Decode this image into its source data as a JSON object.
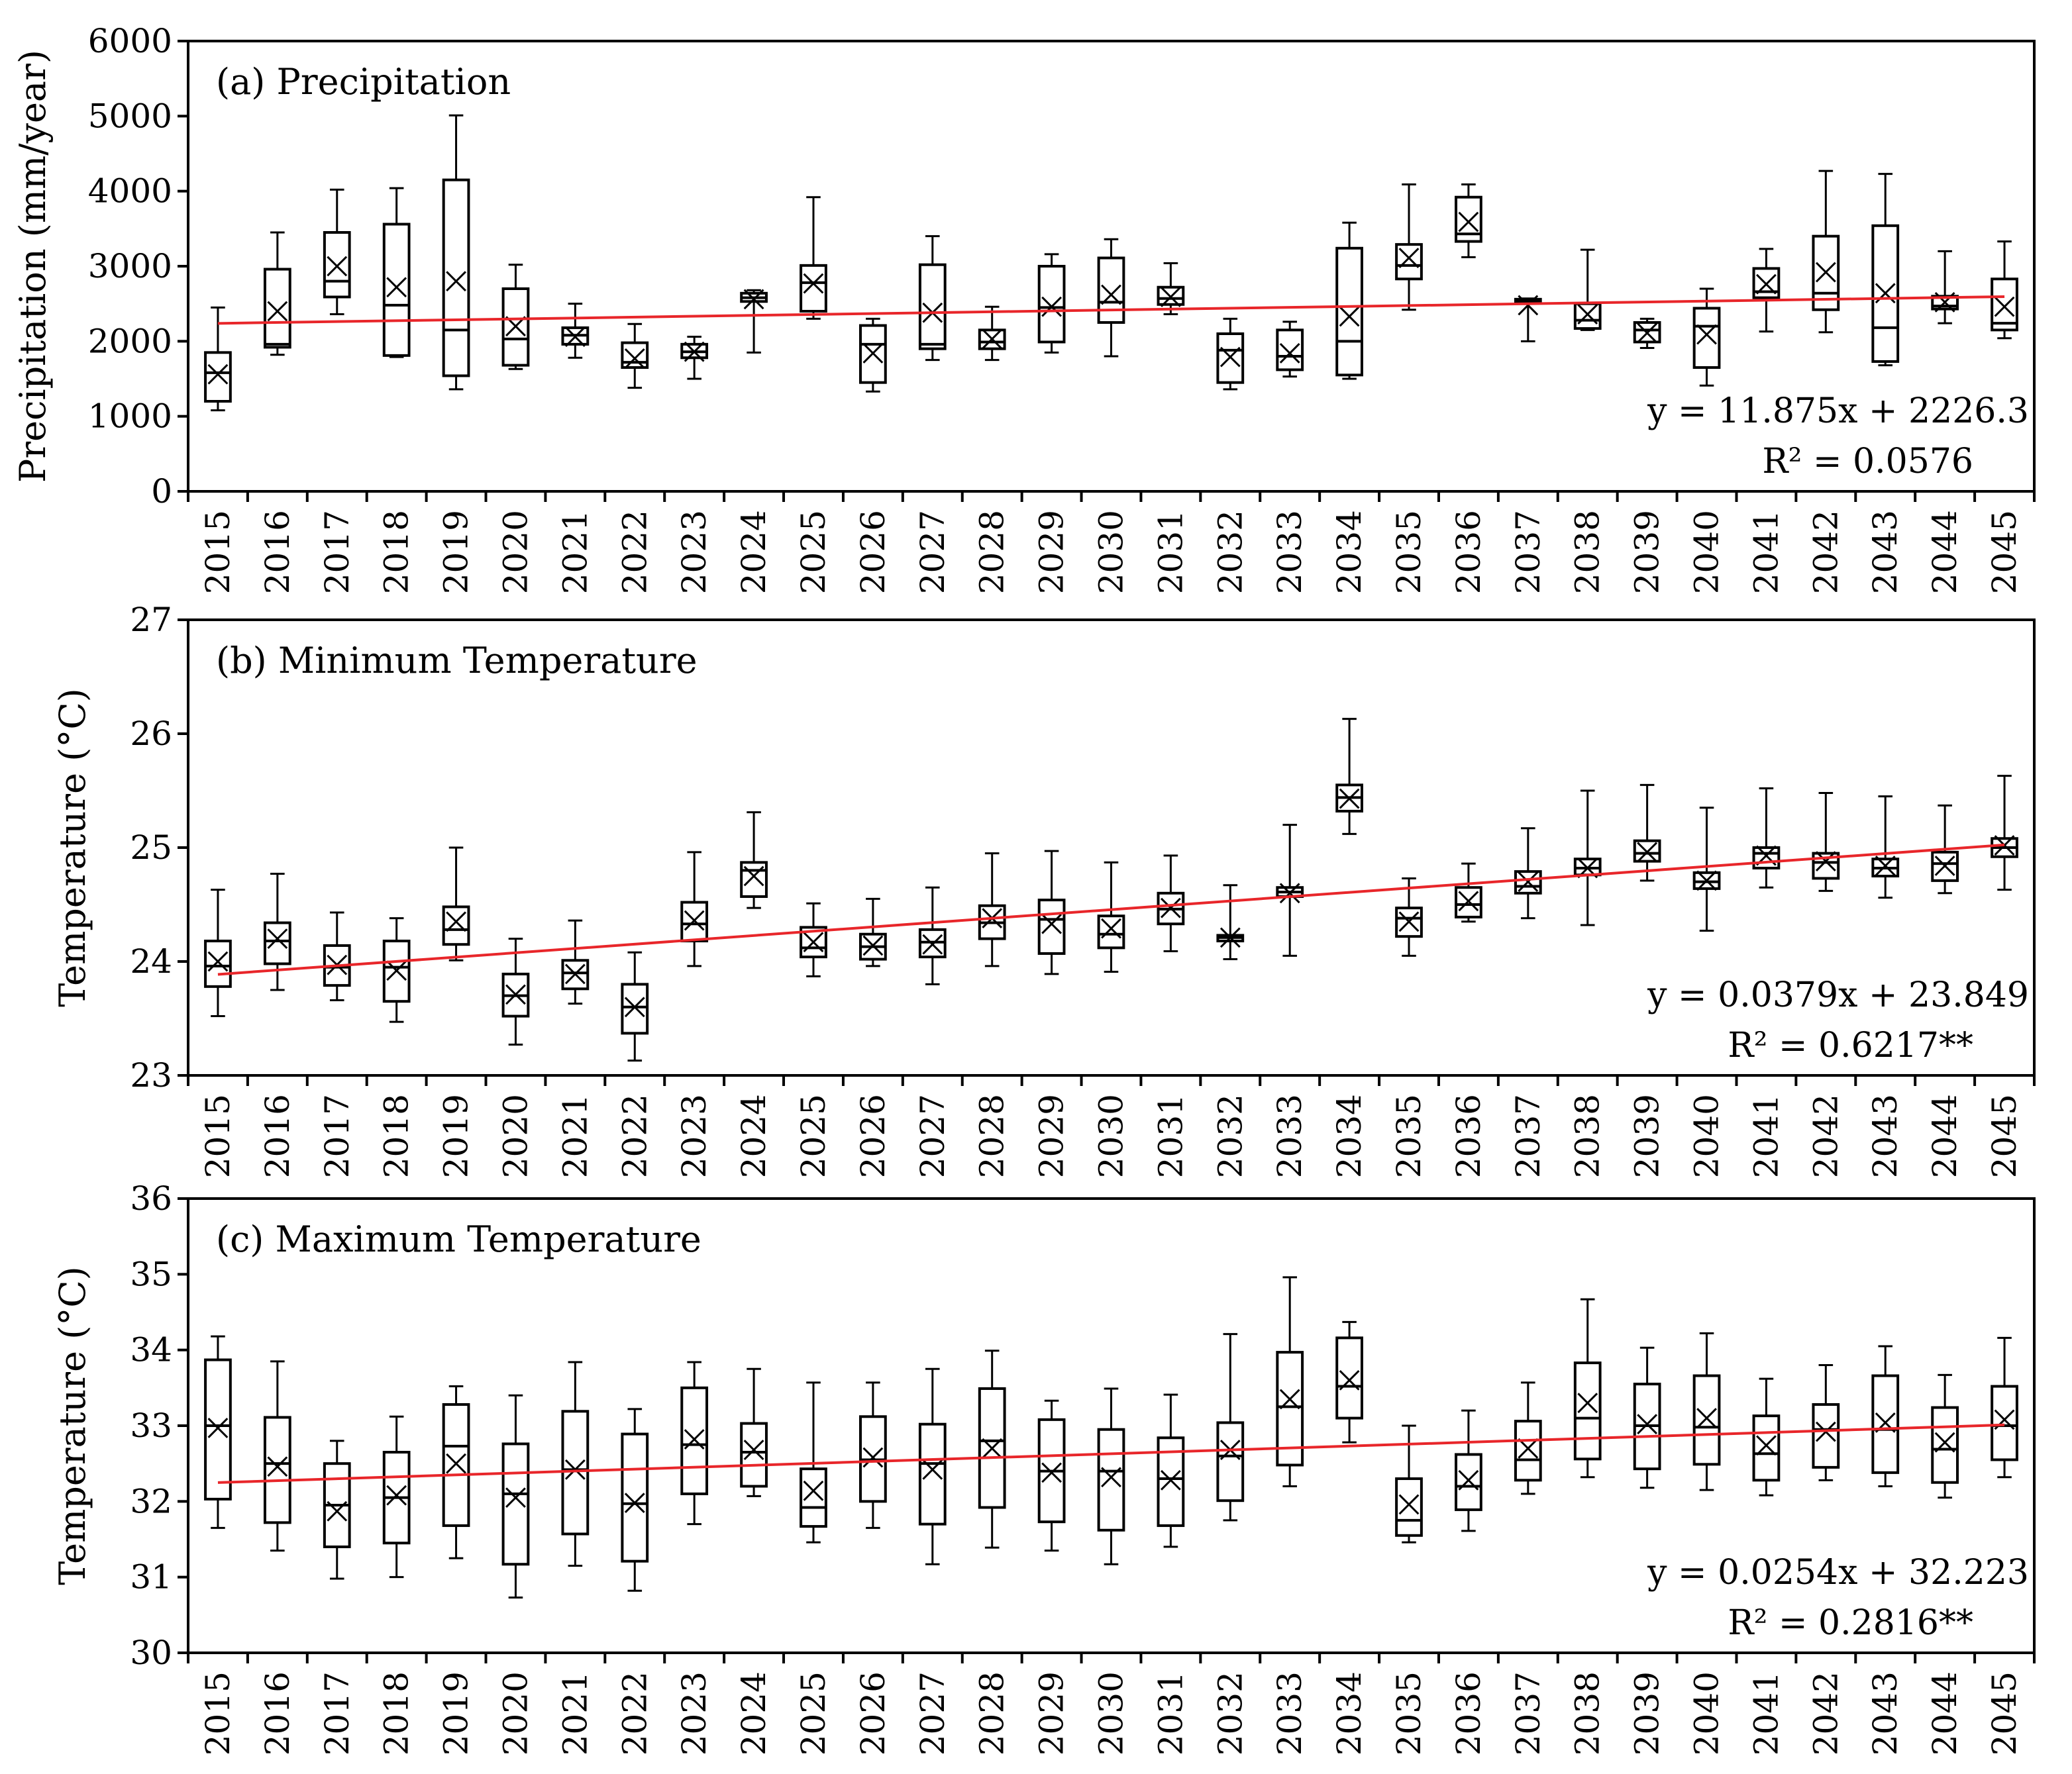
{
  "chart_data": [
    {
      "type": "box",
      "panel": "top",
      "title": "(a) Precipitation",
      "ylabel": "Precipitation (mm/year)",
      "ylim": [
        0,
        6000
      ],
      "yticks": [
        0,
        1000,
        2000,
        3000,
        4000,
        5000,
        6000
      ],
      "categories": [
        "2015",
        "2016",
        "2017",
        "2018",
        "2019",
        "2020",
        "2021",
        "2022",
        "2023",
        "2024",
        "2025",
        "2026",
        "2027",
        "2028",
        "2029",
        "2030",
        "2031",
        "2032",
        "2033",
        "2034",
        "2035",
        "2036",
        "2037",
        "2038",
        "2039",
        "2040",
        "2041",
        "2042",
        "2043",
        "2044",
        "2045"
      ],
      "boxes": [
        {
          "min": 1080,
          "q1": 1200,
          "median": 1580,
          "q3": 1850,
          "max": 2450,
          "mean": 1560
        },
        {
          "min": 1820,
          "q1": 1920,
          "median": 1960,
          "q3": 2960,
          "max": 3450,
          "mean": 2400
        },
        {
          "min": 2360,
          "q1": 2590,
          "median": 2800,
          "q3": 3450,
          "max": 4020,
          "mean": 3000
        },
        {
          "min": 1790,
          "q1": 1810,
          "median": 2480,
          "q3": 3560,
          "max": 4040,
          "mean": 2720
        },
        {
          "min": 1360,
          "q1": 1540,
          "median": 2150,
          "q3": 4150,
          "max": 5010,
          "mean": 2800
        },
        {
          "min": 1630,
          "q1": 1680,
          "median": 2030,
          "q3": 2700,
          "max": 3020,
          "mean": 2200
        },
        {
          "min": 1780,
          "q1": 1960,
          "median": 2080,
          "q3": 2180,
          "max": 2500,
          "mean": 2060
        },
        {
          "min": 1380,
          "q1": 1650,
          "median": 1720,
          "q3": 1980,
          "max": 2230,
          "mean": 1770
        },
        {
          "min": 1500,
          "q1": 1780,
          "median": 1860,
          "q3": 1960,
          "max": 2060,
          "mean": 1860
        },
        {
          "min": 1850,
          "q1": 2530,
          "median": 2580,
          "q3": 2640,
          "max": 2680,
          "mean": 2560
        },
        {
          "min": 2300,
          "q1": 2400,
          "median": 2780,
          "q3": 3010,
          "max": 3920,
          "mean": 2770
        },
        {
          "min": 1330,
          "q1": 1450,
          "median": 1960,
          "q3": 2210,
          "max": 2300,
          "mean": 1840
        },
        {
          "min": 1750,
          "q1": 1900,
          "median": 1960,
          "q3": 3020,
          "max": 3400,
          "mean": 2380
        },
        {
          "min": 1750,
          "q1": 1900,
          "median": 1990,
          "q3": 2150,
          "max": 2460,
          "mean": 2030
        },
        {
          "min": 1850,
          "q1": 1990,
          "median": 2450,
          "q3": 3000,
          "max": 3160,
          "mean": 2460
        },
        {
          "min": 1800,
          "q1": 2250,
          "median": 2520,
          "q3": 3110,
          "max": 3360,
          "mean": 2620
        },
        {
          "min": 2360,
          "q1": 2490,
          "median": 2570,
          "q3": 2720,
          "max": 3040,
          "mean": 2590
        },
        {
          "min": 1360,
          "q1": 1450,
          "median": 1880,
          "q3": 2100,
          "max": 2300,
          "mean": 1790
        },
        {
          "min": 1530,
          "q1": 1620,
          "median": 1800,
          "q3": 2150,
          "max": 2260,
          "mean": 1840
        },
        {
          "min": 1500,
          "q1": 1550,
          "median": 2000,
          "q3": 3240,
          "max": 3580,
          "mean": 2330
        },
        {
          "min": 2420,
          "q1": 2830,
          "median": 3010,
          "q3": 3290,
          "max": 4090,
          "mean": 3110
        },
        {
          "min": 3120,
          "q1": 3330,
          "median": 3430,
          "q3": 3920,
          "max": 4090,
          "mean": 3590
        },
        {
          "min": 2000,
          "q1": 2510,
          "median": 2540,
          "q3": 2560,
          "max": 2570,
          "mean": 2480
        },
        {
          "min": 2150,
          "q1": 2170,
          "median": 2280,
          "q3": 2500,
          "max": 3220,
          "mean": 2360
        },
        {
          "min": 1910,
          "q1": 1990,
          "median": 2150,
          "q3": 2250,
          "max": 2300,
          "mean": 2110
        },
        {
          "min": 1410,
          "q1": 1650,
          "median": 2200,
          "q3": 2440,
          "max": 2700,
          "mean": 2090
        },
        {
          "min": 2130,
          "q1": 2580,
          "median": 2660,
          "q3": 2970,
          "max": 3230,
          "mean": 2760
        },
        {
          "min": 2120,
          "q1": 2420,
          "median": 2640,
          "q3": 3400,
          "max": 4270,
          "mean": 2920
        },
        {
          "min": 1680,
          "q1": 1730,
          "median": 2180,
          "q3": 3540,
          "max": 4230,
          "mean": 2640
        },
        {
          "min": 2240,
          "q1": 2430,
          "median": 2470,
          "q3": 2600,
          "max": 3200,
          "mean": 2520
        },
        {
          "min": 2040,
          "q1": 2150,
          "median": 2240,
          "q3": 2830,
          "max": 3330,
          "mean": 2460
        }
      ],
      "trend": {
        "slope": 11.875,
        "intercept": 2226.3
      },
      "equation": "y = 11.875x + 2226.3",
      "r2": "R² = 0.0576"
    },
    {
      "type": "box",
      "panel": "middle",
      "title": "(b) Minimum Temperature",
      "ylabel": "Temperature (°C)",
      "ylim": [
        23,
        27
      ],
      "yticks": [
        23,
        24,
        25,
        26,
        27
      ],
      "categories": [
        "2015",
        "2016",
        "2017",
        "2018",
        "2019",
        "2020",
        "2021",
        "2022",
        "2023",
        "2024",
        "2025",
        "2026",
        "2027",
        "2028",
        "2029",
        "2030",
        "2031",
        "2032",
        "2033",
        "2034",
        "2035",
        "2036",
        "2037",
        "2038",
        "2039",
        "2040",
        "2041",
        "2042",
        "2043",
        "2044",
        "2045"
      ],
      "boxes": [
        {
          "min": 23.52,
          "q1": 23.78,
          "median": 23.96,
          "q3": 24.18,
          "max": 24.63,
          "mean": 24.0
        },
        {
          "min": 23.75,
          "q1": 23.98,
          "median": 24.18,
          "q3": 24.34,
          "max": 24.77,
          "mean": 24.2
        },
        {
          "min": 23.66,
          "q1": 23.79,
          "median": 23.95,
          "q3": 24.14,
          "max": 24.43,
          "mean": 23.97
        },
        {
          "min": 23.47,
          "q1": 23.65,
          "median": 23.95,
          "q3": 24.18,
          "max": 24.38,
          "mean": 23.92
        },
        {
          "min": 24.01,
          "q1": 24.15,
          "median": 24.28,
          "q3": 24.48,
          "max": 25.0,
          "mean": 24.35
        },
        {
          "min": 23.27,
          "q1": 23.52,
          "median": 23.7,
          "q3": 23.89,
          "max": 24.2,
          "mean": 23.71
        },
        {
          "min": 23.63,
          "q1": 23.76,
          "median": 23.9,
          "q3": 24.01,
          "max": 24.36,
          "mean": 23.89
        },
        {
          "min": 23.13,
          "q1": 23.37,
          "median": 23.6,
          "q3": 23.8,
          "max": 24.08,
          "mean": 23.6
        },
        {
          "min": 23.96,
          "q1": 24.18,
          "median": 24.33,
          "q3": 24.52,
          "max": 24.96,
          "mean": 24.36
        },
        {
          "min": 24.47,
          "q1": 24.57,
          "median": 24.8,
          "q3": 24.87,
          "max": 25.31,
          "mean": 24.75
        },
        {
          "min": 23.87,
          "q1": 24.04,
          "median": 24.12,
          "q3": 24.3,
          "max": 24.51,
          "mean": 24.17
        },
        {
          "min": 23.96,
          "q1": 24.02,
          "median": 24.13,
          "q3": 24.24,
          "max": 24.55,
          "mean": 24.14
        },
        {
          "min": 23.8,
          "q1": 24.04,
          "median": 24.17,
          "q3": 24.28,
          "max": 24.65,
          "mean": 24.15
        },
        {
          "min": 23.96,
          "q1": 24.2,
          "median": 24.34,
          "q3": 24.49,
          "max": 24.95,
          "mean": 24.38
        },
        {
          "min": 23.89,
          "q1": 24.07,
          "median": 24.37,
          "q3": 24.54,
          "max": 24.97,
          "mean": 24.33
        },
        {
          "min": 23.91,
          "q1": 24.12,
          "median": 24.24,
          "q3": 24.4,
          "max": 24.87,
          "mean": 24.29
        },
        {
          "min": 24.09,
          "q1": 24.33,
          "median": 24.46,
          "q3": 24.6,
          "max": 24.93,
          "mean": 24.47
        },
        {
          "min": 24.02,
          "q1": 24.18,
          "median": 24.21,
          "q3": 24.23,
          "max": 24.67,
          "mean": 24.21
        },
        {
          "min": 24.05,
          "q1": 24.57,
          "median": 24.61,
          "q3": 24.65,
          "max": 25.2,
          "mean": 24.6
        },
        {
          "min": 25.12,
          "q1": 25.32,
          "median": 25.44,
          "q3": 25.55,
          "max": 26.13,
          "mean": 25.43
        },
        {
          "min": 24.05,
          "q1": 24.22,
          "median": 24.38,
          "q3": 24.47,
          "max": 24.73,
          "mean": 24.35
        },
        {
          "min": 24.35,
          "q1": 24.39,
          "median": 24.5,
          "q3": 24.65,
          "max": 24.86,
          "mean": 24.53
        },
        {
          "min": 24.38,
          "q1": 24.6,
          "median": 24.66,
          "q3": 24.79,
          "max": 25.17,
          "mean": 24.7
        },
        {
          "min": 24.32,
          "q1": 24.76,
          "median": 24.82,
          "q3": 24.9,
          "max": 25.5,
          "mean": 24.82
        },
        {
          "min": 24.71,
          "q1": 24.88,
          "median": 24.95,
          "q3": 25.06,
          "max": 25.55,
          "mean": 24.96
        },
        {
          "min": 24.27,
          "q1": 24.64,
          "median": 24.7,
          "q3": 24.78,
          "max": 25.35,
          "mean": 24.71
        },
        {
          "min": 24.65,
          "q1": 24.82,
          "median": 24.95,
          "q3": 25.0,
          "max": 25.52,
          "mean": 24.93
        },
        {
          "min": 24.62,
          "q1": 24.73,
          "median": 24.87,
          "q3": 24.95,
          "max": 25.48,
          "mean": 24.88
        },
        {
          "min": 24.56,
          "q1": 24.75,
          "median": 24.82,
          "q3": 24.9,
          "max": 25.45,
          "mean": 24.84
        },
        {
          "min": 24.6,
          "q1": 24.71,
          "median": 24.86,
          "q3": 24.96,
          "max": 25.37,
          "mean": 24.84
        },
        {
          "min": 24.63,
          "q1": 24.92,
          "median": 25.0,
          "q3": 25.08,
          "max": 25.63,
          "mean": 25.02
        }
      ],
      "trend": {
        "slope": 0.0379,
        "intercept": 23.849
      },
      "equation": "y = 0.0379x + 23.849",
      "r2": "R² = 0.6217**"
    },
    {
      "type": "box",
      "panel": "bottom",
      "title": "(c) Maximum Temperature",
      "ylabel": "Temperature (°C)",
      "ylim": [
        30,
        36
      ],
      "yticks": [
        30,
        31,
        32,
        33,
        34,
        35,
        36
      ],
      "categories": [
        "2015",
        "2016",
        "2017",
        "2018",
        "2019",
        "2020",
        "2021",
        "2022",
        "2023",
        "2024",
        "2025",
        "2026",
        "2027",
        "2028",
        "2029",
        "2030",
        "2031",
        "2032",
        "2033",
        "2034",
        "2035",
        "2036",
        "2037",
        "2038",
        "2039",
        "2040",
        "2041",
        "2042",
        "2043",
        "2044",
        "2045"
      ],
      "boxes": [
        {
          "min": 31.65,
          "q1": 32.03,
          "median": 33.0,
          "q3": 33.87,
          "max": 34.18,
          "mean": 32.97
        },
        {
          "min": 31.35,
          "q1": 31.72,
          "median": 32.5,
          "q3": 33.11,
          "max": 33.85,
          "mean": 32.46
        },
        {
          "min": 30.98,
          "q1": 31.4,
          "median": 31.95,
          "q3": 32.5,
          "max": 32.8,
          "mean": 31.87
        },
        {
          "min": 31.0,
          "q1": 31.45,
          "median": 32.05,
          "q3": 32.65,
          "max": 33.12,
          "mean": 32.08
        },
        {
          "min": 31.25,
          "q1": 31.68,
          "median": 32.73,
          "q3": 33.28,
          "max": 33.52,
          "mean": 32.5
        },
        {
          "min": 30.73,
          "q1": 31.17,
          "median": 32.1,
          "q3": 32.76,
          "max": 33.4,
          "mean": 32.05
        },
        {
          "min": 31.15,
          "q1": 31.57,
          "median": 32.42,
          "q3": 33.19,
          "max": 33.84,
          "mean": 32.42
        },
        {
          "min": 30.82,
          "q1": 31.21,
          "median": 31.97,
          "q3": 32.89,
          "max": 33.22,
          "mean": 31.98
        },
        {
          "min": 31.7,
          "q1": 32.1,
          "median": 32.75,
          "q3": 33.5,
          "max": 33.84,
          "mean": 32.82
        },
        {
          "min": 32.07,
          "q1": 32.2,
          "median": 32.65,
          "q3": 33.03,
          "max": 33.75,
          "mean": 32.68
        },
        {
          "min": 31.46,
          "q1": 31.67,
          "median": 31.92,
          "q3": 32.43,
          "max": 33.57,
          "mean": 32.14
        },
        {
          "min": 31.65,
          "q1": 32.0,
          "median": 32.55,
          "q3": 33.12,
          "max": 33.57,
          "mean": 32.58
        },
        {
          "min": 31.17,
          "q1": 31.7,
          "median": 32.5,
          "q3": 33.02,
          "max": 33.75,
          "mean": 32.42
        },
        {
          "min": 31.39,
          "q1": 31.92,
          "median": 32.8,
          "q3": 33.49,
          "max": 33.99,
          "mean": 32.7
        },
        {
          "min": 31.35,
          "q1": 31.73,
          "median": 32.4,
          "q3": 33.08,
          "max": 33.33,
          "mean": 32.38
        },
        {
          "min": 31.17,
          "q1": 31.62,
          "median": 32.4,
          "q3": 32.95,
          "max": 33.49,
          "mean": 32.32
        },
        {
          "min": 31.4,
          "q1": 31.68,
          "median": 32.3,
          "q3": 32.84,
          "max": 33.41,
          "mean": 32.28
        },
        {
          "min": 31.75,
          "q1": 32.01,
          "median": 32.6,
          "q3": 33.04,
          "max": 34.21,
          "mean": 32.68
        },
        {
          "min": 32.2,
          "q1": 32.48,
          "median": 33.25,
          "q3": 33.97,
          "max": 34.96,
          "mean": 33.35
        },
        {
          "min": 32.78,
          "q1": 33.1,
          "median": 33.52,
          "q3": 34.16,
          "max": 34.37,
          "mean": 33.6
        },
        {
          "min": 31.46,
          "q1": 31.55,
          "median": 31.75,
          "q3": 32.3,
          "max": 33.0,
          "mean": 31.96
        },
        {
          "min": 31.61,
          "q1": 31.89,
          "median": 32.2,
          "q3": 32.62,
          "max": 33.2,
          "mean": 32.28
        },
        {
          "min": 32.1,
          "q1": 32.28,
          "median": 32.55,
          "q3": 33.06,
          "max": 33.57,
          "mean": 32.7
        },
        {
          "min": 32.32,
          "q1": 32.56,
          "median": 33.1,
          "q3": 33.83,
          "max": 34.67,
          "mean": 33.3
        },
        {
          "min": 32.18,
          "q1": 32.43,
          "median": 33.0,
          "q3": 33.55,
          "max": 34.03,
          "mean": 33.02
        },
        {
          "min": 32.15,
          "q1": 32.49,
          "median": 32.98,
          "q3": 33.66,
          "max": 34.22,
          "mean": 33.1
        },
        {
          "min": 32.08,
          "q1": 32.28,
          "median": 32.63,
          "q3": 33.13,
          "max": 33.62,
          "mean": 32.74
        },
        {
          "min": 32.28,
          "q1": 32.45,
          "median": 32.95,
          "q3": 33.28,
          "max": 33.8,
          "mean": 32.92
        },
        {
          "min": 32.2,
          "q1": 32.38,
          "median": 32.95,
          "q3": 33.66,
          "max": 34.05,
          "mean": 33.04
        },
        {
          "min": 32.05,
          "q1": 32.25,
          "median": 32.69,
          "q3": 33.24,
          "max": 33.67,
          "mean": 32.78
        },
        {
          "min": 32.32,
          "q1": 32.55,
          "median": 33.0,
          "q3": 33.52,
          "max": 34.16,
          "mean": 33.08
        }
      ],
      "trend": {
        "slope": 0.0254,
        "intercept": 32.223
      },
      "equation": "y = 0.0254x + 32.223",
      "r2": "R² = 0.2816**"
    }
  ]
}
